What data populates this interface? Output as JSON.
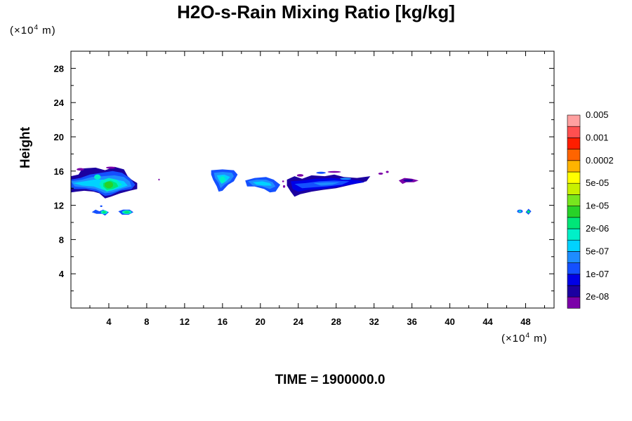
{
  "chart_data": {
    "type": "heatmap",
    "title": "H2O-s-Rain Mixing Ratio [kg/kg]",
    "ylabel": "Height",
    "y_unit": "(×10",
    "x_unit": "(×10",
    "unit_exponent": "4",
    "unit_suffix": " m)",
    "xlim": [
      0,
      51
    ],
    "ylim": [
      0,
      30
    ],
    "x_ticks": [
      4,
      8,
      12,
      16,
      20,
      24,
      28,
      32,
      36,
      40,
      44,
      48
    ],
    "y_ticks": [
      4,
      8,
      12,
      16,
      20,
      24,
      28
    ],
    "x_tick_labels": [
      "4",
      "8",
      "12",
      "16",
      "20",
      "24",
      "28",
      "32",
      "36",
      "40",
      "44",
      "48"
    ],
    "y_tick_labels": [
      "4",
      "8",
      "12",
      "16",
      "20",
      "24",
      "28"
    ],
    "colorbar": {
      "colors": [
        "#7b00a8",
        "#1c00a0",
        "#0000e6",
        "#1450ff",
        "#1e8cff",
        "#00d2ff",
        "#00f0c8",
        "#00e678",
        "#28d228",
        "#78e61e",
        "#c8f000",
        "#ffff00",
        "#ffb400",
        "#ff6400",
        "#ff1e00",
        "#ff5050",
        "#ffa0a0"
      ],
      "labels": [
        "2e-08",
        "1e-07",
        "5e-07",
        "2e-06",
        "1e-05",
        "5e-05",
        "0.0002",
        "0.001",
        "0.005"
      ]
    },
    "regions": [
      {
        "x": [
          0,
          7
        ],
        "y": [
          12.8,
          16.4
        ],
        "level": "1e-07 to 1e-05"
      },
      {
        "x": [
          2.3,
          4.0
        ],
        "y": [
          10.8,
          11.5
        ],
        "level": "5e-07 to 2e-06"
      },
      {
        "x": [
          5.0,
          6.6
        ],
        "y": [
          10.8,
          11.5
        ],
        "level": "5e-07 to 2e-06"
      },
      {
        "x": [
          14.8,
          17.6
        ],
        "y": [
          13.6,
          16.2
        ],
        "level": "1e-07 to 5e-07"
      },
      {
        "x": [
          18.4,
          22.1
        ],
        "y": [
          13.5,
          15.3
        ],
        "level": "1e-07 to 5e-07"
      },
      {
        "x": [
          22.8,
          31.6
        ],
        "y": [
          13.0,
          15.6
        ],
        "level": "2e-08 to 5e-07"
      },
      {
        "x": [
          34.6,
          36.7
        ],
        "y": [
          14.5,
          15.2
        ],
        "level": "2e-08 to 1e-07"
      },
      {
        "x": [
          47.2,
          48.6
        ],
        "y": [
          10.9,
          11.5
        ],
        "level": "1e-07 to 2e-06"
      }
    ]
  },
  "time_label": "TIME = 1900000.0"
}
